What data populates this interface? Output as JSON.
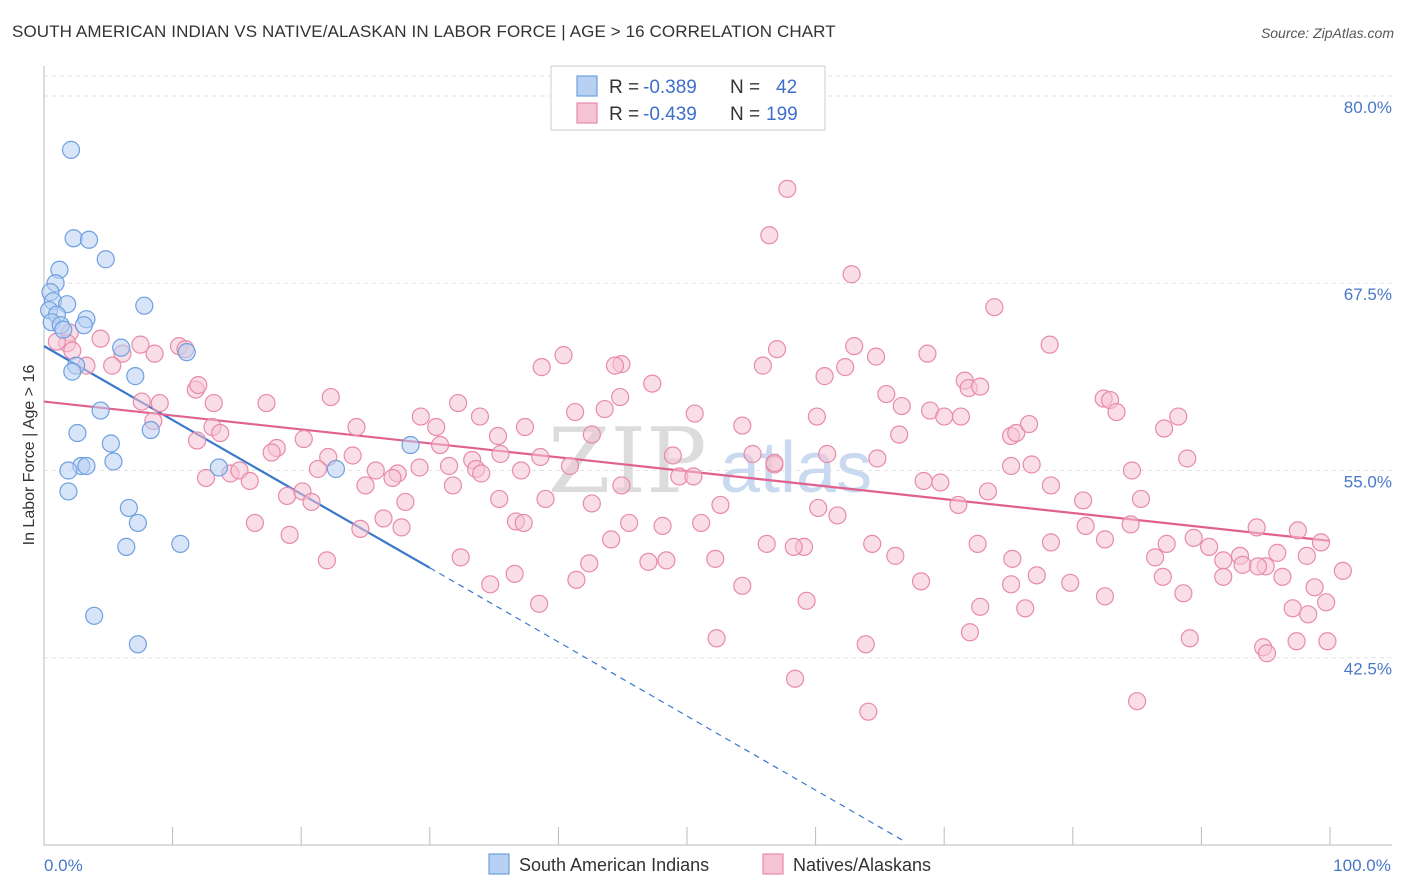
{
  "header": {
    "title": "SOUTH AMERICAN INDIAN VS NATIVE/ALASKAN IN LABOR FORCE | AGE > 16 CORRELATION CHART",
    "source": "Source: ZipAtlas.com"
  },
  "watermark": {
    "zip": "ZIP",
    "atlas": "atlas"
  },
  "chart_data": {
    "type": "scatter",
    "ylabel": "In Labor Force | Age > 16",
    "xlim": [
      0,
      100
    ],
    "ylim": [
      30,
      82
    ],
    "x_tick_labels": [
      {
        "value": 0,
        "label": "0.0%"
      },
      {
        "value": 100,
        "label": "100.0%"
      }
    ],
    "y_ticks": [
      {
        "value": 80.0,
        "label": "80.0%"
      },
      {
        "value": 67.5,
        "label": "67.5%"
      },
      {
        "value": 55.0,
        "label": "55.0%"
      },
      {
        "value": 42.5,
        "label": "42.5%"
      }
    ],
    "grid": true,
    "legend_position": "top-center",
    "series": [
      {
        "name": "South American Indians",
        "color": "#6fa0e0",
        "fill": "#b8d0f2",
        "R": "-0.389",
        "N": "42",
        "trend": {
          "x0": 0.0,
          "y0": 63.3,
          "x1": 30.0,
          "y1": 48.5,
          "dash_to_x": 67.0,
          "dash_to_y": 30.2,
          "color": "#3a78cc"
        },
        "points": [
          [
            2.1,
            76.4
          ],
          [
            2.3,
            70.5
          ],
          [
            3.5,
            70.4
          ],
          [
            4.8,
            69.1
          ],
          [
            1.2,
            68.4
          ],
          [
            0.9,
            67.5
          ],
          [
            0.5,
            66.9
          ],
          [
            0.7,
            66.3
          ],
          [
            1.8,
            66.1
          ],
          [
            7.8,
            66.0
          ],
          [
            0.4,
            65.7
          ],
          [
            1.0,
            65.4
          ],
          [
            3.3,
            65.1
          ],
          [
            0.6,
            64.9
          ],
          [
            1.3,
            64.7
          ],
          [
            3.1,
            64.7
          ],
          [
            1.5,
            64.4
          ],
          [
            6.0,
            63.2
          ],
          [
            11.1,
            62.9
          ],
          [
            2.5,
            62.0
          ],
          [
            2.2,
            61.6
          ],
          [
            7.1,
            61.3
          ],
          [
            4.4,
            59.0
          ],
          [
            8.3,
            57.7
          ],
          [
            2.6,
            57.5
          ],
          [
            5.2,
            56.8
          ],
          [
            28.5,
            56.7
          ],
          [
            5.4,
            55.6
          ],
          [
            2.9,
            55.3
          ],
          [
            3.3,
            55.3
          ],
          [
            13.6,
            55.2
          ],
          [
            22.7,
            55.1
          ],
          [
            1.9,
            55.0
          ],
          [
            1.9,
            53.6
          ],
          [
            6.6,
            52.5
          ],
          [
            7.3,
            51.5
          ],
          [
            10.6,
            50.1
          ],
          [
            6.4,
            49.9
          ],
          [
            3.9,
            45.3
          ],
          [
            7.3,
            43.4
          ]
        ]
      },
      {
        "name": "Natives/Alaskans",
        "color": "#e88aab",
        "fill": "#f6c3d4",
        "R": "-0.439",
        "N": "199",
        "trend": {
          "x0": 0.0,
          "y0": 59.6,
          "x1": 100.0,
          "y1": 50.3,
          "color": "#e0608e"
        },
        "points": [
          [
            57.8,
            73.8
          ],
          [
            56.4,
            70.7
          ],
          [
            62.8,
            68.1
          ],
          [
            73.9,
            65.9
          ],
          [
            2.0,
            64.2
          ],
          [
            4.4,
            63.8
          ],
          [
            1.8,
            63.5
          ],
          [
            7.5,
            63.4
          ],
          [
            10.5,
            63.3
          ],
          [
            2.2,
            63.0
          ],
          [
            6.1,
            62.8
          ],
          [
            8.6,
            62.8
          ],
          [
            11.0,
            63.1
          ],
          [
            5.3,
            62.0
          ],
          [
            3.3,
            62.0
          ],
          [
            1.0,
            63.6
          ],
          [
            57.0,
            63.1
          ],
          [
            63.0,
            63.3
          ],
          [
            64.7,
            62.6
          ],
          [
            68.7,
            62.8
          ],
          [
            78.2,
            63.4
          ],
          [
            40.4,
            62.7
          ],
          [
            44.9,
            62.1
          ],
          [
            38.7,
            61.9
          ],
          [
            55.9,
            62.0
          ],
          [
            62.3,
            61.9
          ],
          [
            44.4,
            62.0
          ],
          [
            47.3,
            60.8
          ],
          [
            60.7,
            61.3
          ],
          [
            71.6,
            61.0
          ],
          [
            71.9,
            60.5
          ],
          [
            72.8,
            60.6
          ],
          [
            11.8,
            60.4
          ],
          [
            12.0,
            60.7
          ],
          [
            65.5,
            60.1
          ],
          [
            44.8,
            59.9
          ],
          [
            22.3,
            59.9
          ],
          [
            7.6,
            59.6
          ],
          [
            9.0,
            59.5
          ],
          [
            13.2,
            59.5
          ],
          [
            17.3,
            59.5
          ],
          [
            32.2,
            59.5
          ],
          [
            66.7,
            59.3
          ],
          [
            68.9,
            59.0
          ],
          [
            82.4,
            59.8
          ],
          [
            82.9,
            59.7
          ],
          [
            29.3,
            58.6
          ],
          [
            33.9,
            58.6
          ],
          [
            41.3,
            58.9
          ],
          [
            43.6,
            59.1
          ],
          [
            50.6,
            58.8
          ],
          [
            60.1,
            58.6
          ],
          [
            70.0,
            58.6
          ],
          [
            71.3,
            58.6
          ],
          [
            83.4,
            58.9
          ],
          [
            88.2,
            58.6
          ],
          [
            8.5,
            58.3
          ],
          [
            11.9,
            57.0
          ],
          [
            13.1,
            57.9
          ],
          [
            13.7,
            57.5
          ],
          [
            20.2,
            57.1
          ],
          [
            24.3,
            57.9
          ],
          [
            30.5,
            57.9
          ],
          [
            35.3,
            57.3
          ],
          [
            37.4,
            57.9
          ],
          [
            42.6,
            57.4
          ],
          [
            54.3,
            58.0
          ],
          [
            66.5,
            57.4
          ],
          [
            75.2,
            57.3
          ],
          [
            75.6,
            57.5
          ],
          [
            76.6,
            58.1
          ],
          [
            87.1,
            57.8
          ],
          [
            18.1,
            56.5
          ],
          [
            17.7,
            56.2
          ],
          [
            22.1,
            55.9
          ],
          [
            24.0,
            56.0
          ],
          [
            30.8,
            56.7
          ],
          [
            33.3,
            55.7
          ],
          [
            35.5,
            56.1
          ],
          [
            38.6,
            55.9
          ],
          [
            48.9,
            56.0
          ],
          [
            55.1,
            56.1
          ],
          [
            56.8,
            55.4
          ],
          [
            60.9,
            56.1
          ],
          [
            64.8,
            55.8
          ],
          [
            76.8,
            55.4
          ],
          [
            88.9,
            55.8
          ],
          [
            21.3,
            55.1
          ],
          [
            14.5,
            54.8
          ],
          [
            15.2,
            55.0
          ],
          [
            25.8,
            55.0
          ],
          [
            27.5,
            54.8
          ],
          [
            29.2,
            55.2
          ],
          [
            31.5,
            55.3
          ],
          [
            33.6,
            55.1
          ],
          [
            34.0,
            54.8
          ],
          [
            37.1,
            55.0
          ],
          [
            40.9,
            55.3
          ],
          [
            49.4,
            54.6
          ],
          [
            50.5,
            54.6
          ],
          [
            56.8,
            55.5
          ],
          [
            75.2,
            55.3
          ],
          [
            84.6,
            55.0
          ],
          [
            12.6,
            54.5
          ],
          [
            16.0,
            54.3
          ],
          [
            25.0,
            54.0
          ],
          [
            27.1,
            54.5
          ],
          [
            31.8,
            54.0
          ],
          [
            44.9,
            54.0
          ],
          [
            68.4,
            54.3
          ],
          [
            69.7,
            54.2
          ],
          [
            73.4,
            53.6
          ],
          [
            78.3,
            54.0
          ],
          [
            18.9,
            53.3
          ],
          [
            20.1,
            53.6
          ],
          [
            28.1,
            52.9
          ],
          [
            35.4,
            53.1
          ],
          [
            39.0,
            53.1
          ],
          [
            42.6,
            52.8
          ],
          [
            52.6,
            52.7
          ],
          [
            60.2,
            52.5
          ],
          [
            71.1,
            52.7
          ],
          [
            80.8,
            53.0
          ],
          [
            85.3,
            53.1
          ],
          [
            16.4,
            51.5
          ],
          [
            19.1,
            50.7
          ],
          [
            24.6,
            51.1
          ],
          [
            26.4,
            51.8
          ],
          [
            27.8,
            51.2
          ],
          [
            36.7,
            51.6
          ],
          [
            37.3,
            51.5
          ],
          [
            45.5,
            51.5
          ],
          [
            48.1,
            51.3
          ],
          [
            51.1,
            51.5
          ],
          [
            61.7,
            52.0
          ],
          [
            81.0,
            51.3
          ],
          [
            84.5,
            51.4
          ],
          [
            89.4,
            50.5
          ],
          [
            94.3,
            51.2
          ],
          [
            97.5,
            51.0
          ],
          [
            99.3,
            50.2
          ],
          [
            20.8,
            52.9
          ],
          [
            44.1,
            50.4
          ],
          [
            56.2,
            50.1
          ],
          [
            59.1,
            49.9
          ],
          [
            64.4,
            50.1
          ],
          [
            72.6,
            50.1
          ],
          [
            75.3,
            49.1
          ],
          [
            78.3,
            50.2
          ],
          [
            82.5,
            50.4
          ],
          [
            87.3,
            50.1
          ],
          [
            90.6,
            49.9
          ],
          [
            93.0,
            49.3
          ],
          [
            93.2,
            48.7
          ],
          [
            95.0,
            48.6
          ],
          [
            95.9,
            49.5
          ],
          [
            98.2,
            49.3
          ],
          [
            22.0,
            49.0
          ],
          [
            32.4,
            49.2
          ],
          [
            36.6,
            48.1
          ],
          [
            42.4,
            48.8
          ],
          [
            47.0,
            48.9
          ],
          [
            48.4,
            49.0
          ],
          [
            52.2,
            49.1
          ],
          [
            58.3,
            49.9
          ],
          [
            66.2,
            49.3
          ],
          [
            86.4,
            49.2
          ],
          [
            91.7,
            49.0
          ],
          [
            94.4,
            48.6
          ],
          [
            101.0,
            48.3
          ],
          [
            34.7,
            47.4
          ],
          [
            41.4,
            47.7
          ],
          [
            54.3,
            47.3
          ],
          [
            68.2,
            47.6
          ],
          [
            75.2,
            47.4
          ],
          [
            77.2,
            48.0
          ],
          [
            79.8,
            47.5
          ],
          [
            87.0,
            47.9
          ],
          [
            91.7,
            47.9
          ],
          [
            96.3,
            47.9
          ],
          [
            98.8,
            47.2
          ],
          [
            38.5,
            46.1
          ],
          [
            59.3,
            46.3
          ],
          [
            72.8,
            45.9
          ],
          [
            76.3,
            45.8
          ],
          [
            82.5,
            46.6
          ],
          [
            88.6,
            46.8
          ],
          [
            97.1,
            45.8
          ],
          [
            98.3,
            45.4
          ],
          [
            99.7,
            46.2
          ],
          [
            52.3,
            43.8
          ],
          [
            63.9,
            43.4
          ],
          [
            72.0,
            44.2
          ],
          [
            89.1,
            43.8
          ],
          [
            97.4,
            43.6
          ],
          [
            99.8,
            43.6
          ],
          [
            94.8,
            43.2
          ],
          [
            95.1,
            42.8
          ],
          [
            58.4,
            41.1
          ],
          [
            85.0,
            39.6
          ],
          [
            64.1,
            38.9
          ]
        ]
      }
    ]
  },
  "legend": {
    "r_label": "R =",
    "n_label": "N =",
    "bottom_items": [
      "South American Indians",
      "Natives/Alaskans"
    ]
  }
}
